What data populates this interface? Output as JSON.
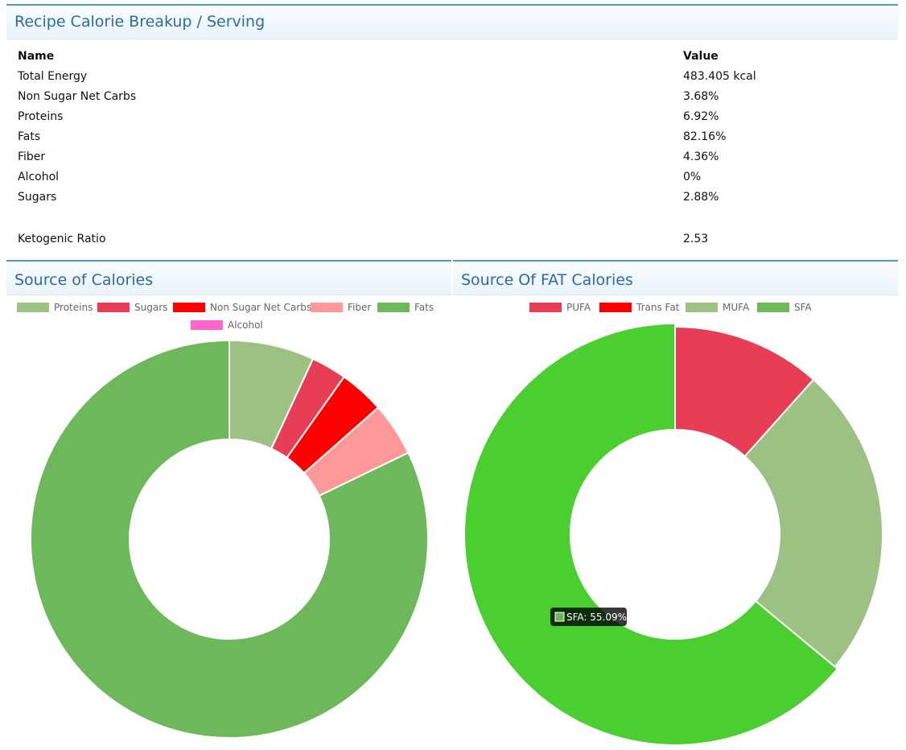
{
  "breakup": {
    "title": "Recipe Calorie Breakup / Serving",
    "col_name": "Name",
    "col_value": "Value",
    "rows": [
      {
        "name": "Total Energy",
        "value": "483.405 kcal"
      },
      {
        "name": "Non Sugar Net Carbs",
        "value": "3.68%"
      },
      {
        "name": "Proteins",
        "value": "6.92%"
      },
      {
        "name": "Fats",
        "value": "82.16%"
      },
      {
        "name": "Fiber",
        "value": "4.36%"
      },
      {
        "name": "Alcohol",
        "value": "0%"
      },
      {
        "name": "Sugars",
        "value": "2.88%"
      }
    ],
    "keto_label": "Ketogenic Ratio",
    "keto_value": "2.53"
  },
  "left_panel": {
    "title": "Source of Calories"
  },
  "right_panel": {
    "title": "Source Of FAT Calories"
  },
  "chart_data": [
    {
      "type": "pie",
      "title": "Source of Calories",
      "series": [
        {
          "name": "Proteins",
          "value": 6.92,
          "color": "#9dc183"
        },
        {
          "name": "Sugars",
          "value": 2.88,
          "color": "#e83e55"
        },
        {
          "name": "Non Sugar Net Carbs",
          "value": 3.68,
          "color": "#ff0000"
        },
        {
          "name": "Fiber",
          "value": 4.36,
          "color": "#ff9999"
        },
        {
          "name": "Fats",
          "value": 82.16,
          "color": "#6cb85a"
        },
        {
          "name": "Alcohol",
          "value": 0,
          "color": "#ff66cc"
        }
      ],
      "legend": "top"
    },
    {
      "type": "pie",
      "title": "Source Of FAT Calories",
      "series": [
        {
          "name": "PUFA",
          "value": 10,
          "color": "#e83e55"
        },
        {
          "name": "Trans Fat",
          "value": 0,
          "color": "#ff0000"
        },
        {
          "name": "MUFA",
          "value": 21,
          "color": "#9dc183"
        },
        {
          "name": "SFA",
          "value": 55.09,
          "color": "#6cb85a",
          "highlight_color": "#4bce2f"
        }
      ],
      "legend": "top",
      "tooltip": "SFA: 55.09%"
    }
  ]
}
